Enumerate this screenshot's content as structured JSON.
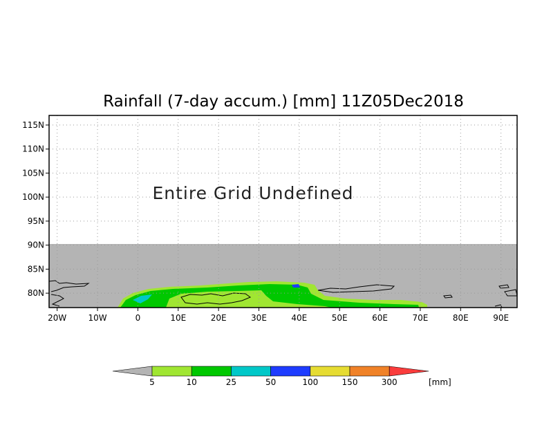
{
  "title": "Rainfall (7-day accum.) [mm] 11Z05Dec2018",
  "message": "Entire Grid Undefined",
  "map": {
    "lon_range": [
      -22,
      94
    ],
    "lat_range": [
      77,
      117
    ],
    "x_ticks": [
      "20W",
      "10W",
      "0",
      "10E",
      "20E",
      "30E",
      "40E",
      "50E",
      "60E",
      "70E",
      "80E",
      "90E"
    ],
    "y_ticks": [
      "115N",
      "110N",
      "105N",
      "100N",
      "95N",
      "90N",
      "85N",
      "80N"
    ],
    "undefined_color": "#b4b4b4",
    "grid_lines": "dotted"
  },
  "colorbar": {
    "unit": "[mm]",
    "thresholds": [
      "5",
      "10",
      "25",
      "50",
      "100",
      "150",
      "300"
    ],
    "colors": [
      "#b4b4b4",
      "#a0e632",
      "#00c800",
      "#00c8c8",
      "#1e3cff",
      "#e6dc32",
      "#f08228",
      "#fa3c3c"
    ]
  }
}
